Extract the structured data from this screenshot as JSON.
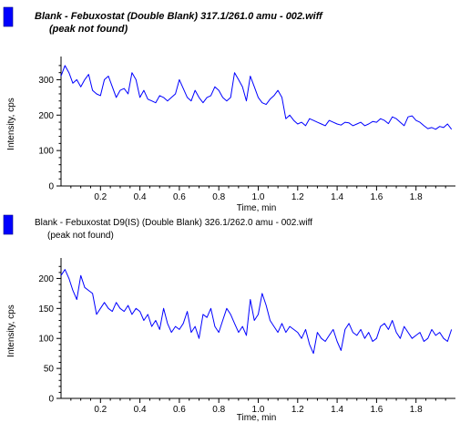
{
  "chart_data": [
    {
      "type": "line",
      "title": "Blank - Febuxostat (Double Blank) 317.1/261.0 amu - 002.wiff",
      "subtitle": "(peak not found)",
      "title_style": "bold-italic",
      "legend_color": "#0000ff",
      "line_color": "#0000ff",
      "xlabel": "Time, min",
      "ylabel": "Intensity, cps",
      "xlim": [
        0.0,
        2.0
      ],
      "ylim": [
        0,
        350
      ],
      "x_ticks": [
        0.2,
        0.4,
        0.6,
        0.8,
        1.0,
        1.2,
        1.4,
        1.6,
        1.8
      ],
      "y_ticks": [
        0,
        100,
        200,
        300
      ],
      "x_tick_labels": [
        "0.2",
        "0.4",
        "0.6",
        "0.8",
        "1.0",
        "1.2",
        "1.4",
        "1.6",
        "1.8"
      ],
      "y_tick_labels": [
        "0",
        "100",
        "200",
        "300"
      ],
      "grid": false,
      "series": [
        {
          "x": [
            0.0,
            0.02,
            0.04,
            0.06,
            0.08,
            0.1,
            0.12,
            0.14,
            0.16,
            0.18,
            0.2,
            0.22,
            0.24,
            0.26,
            0.28,
            0.3,
            0.32,
            0.34,
            0.36,
            0.38,
            0.4,
            0.42,
            0.44,
            0.46,
            0.48,
            0.5,
            0.52,
            0.54,
            0.56,
            0.58,
            0.6,
            0.62,
            0.64,
            0.66,
            0.68,
            0.7,
            0.72,
            0.74,
            0.76,
            0.78,
            0.8,
            0.82,
            0.84,
            0.86,
            0.88,
            0.9,
            0.92,
            0.94,
            0.96,
            0.98,
            1.0,
            1.02,
            1.04,
            1.06,
            1.08,
            1.1,
            1.12,
            1.14,
            1.16,
            1.18,
            1.2,
            1.22,
            1.24,
            1.26,
            1.28,
            1.3,
            1.32,
            1.34,
            1.36,
            1.38,
            1.4,
            1.42,
            1.44,
            1.46,
            1.48,
            1.5,
            1.52,
            1.54,
            1.56,
            1.58,
            1.6,
            1.62,
            1.64,
            1.66,
            1.68,
            1.7,
            1.72,
            1.74,
            1.76,
            1.78,
            1.8,
            1.82,
            1.84,
            1.86,
            1.88,
            1.9,
            1.92,
            1.94,
            1.96,
            1.98
          ],
          "y": [
            310,
            340,
            320,
            290,
            300,
            280,
            300,
            315,
            270,
            260,
            255,
            300,
            310,
            280,
            250,
            270,
            275,
            260,
            320,
            300,
            250,
            270,
            245,
            240,
            235,
            255,
            250,
            240,
            250,
            260,
            300,
            275,
            250,
            240,
            270,
            250,
            235,
            250,
            255,
            280,
            270,
            250,
            240,
            250,
            320,
            300,
            280,
            240,
            310,
            280,
            250,
            235,
            230,
            245,
            255,
            270,
            250,
            190,
            200,
            185,
            175,
            180,
            170,
            190,
            185,
            180,
            175,
            170,
            185,
            180,
            175,
            172,
            180,
            178,
            170,
            175,
            180,
            170,
            175,
            182,
            180,
            190,
            185,
            176,
            195,
            190,
            180,
            170,
            195,
            198,
            185,
            180,
            170,
            162,
            165,
            160,
            168,
            165,
            175,
            160
          ]
        }
      ]
    },
    {
      "type": "line",
      "title": "Blank - Febuxostat D9(IS) (Double Blank) 326.1/262.0 amu - 002.wiff",
      "subtitle": "(peak not found)",
      "title_style": "normal",
      "legend_color": "#0000ff",
      "line_color": "#0000ff",
      "xlabel": "Time, min",
      "ylabel": "Intensity, cps",
      "xlim": [
        0.0,
        2.0
      ],
      "ylim": [
        0,
        225
      ],
      "x_ticks": [
        0.2,
        0.4,
        0.6,
        0.8,
        1.0,
        1.2,
        1.4,
        1.6,
        1.8
      ],
      "y_ticks": [
        0,
        50,
        100,
        150,
        200
      ],
      "x_tick_labels": [
        "0.2",
        "0.4",
        "0.6",
        "0.8",
        "1.0",
        "1.2",
        "1.4",
        "1.6",
        "1.8"
      ],
      "y_tick_labels": [
        "0",
        "50",
        "100",
        "150",
        "200"
      ],
      "grid": false,
      "series": [
        {
          "x": [
            0.0,
            0.02,
            0.04,
            0.06,
            0.08,
            0.1,
            0.12,
            0.14,
            0.16,
            0.18,
            0.2,
            0.22,
            0.24,
            0.26,
            0.28,
            0.3,
            0.32,
            0.34,
            0.36,
            0.38,
            0.4,
            0.42,
            0.44,
            0.46,
            0.48,
            0.5,
            0.52,
            0.54,
            0.56,
            0.58,
            0.6,
            0.62,
            0.64,
            0.66,
            0.68,
            0.7,
            0.72,
            0.74,
            0.76,
            0.78,
            0.8,
            0.82,
            0.84,
            0.86,
            0.88,
            0.9,
            0.92,
            0.94,
            0.96,
            0.98,
            1.0,
            1.02,
            1.04,
            1.06,
            1.08,
            1.1,
            1.12,
            1.14,
            1.16,
            1.18,
            1.2,
            1.22,
            1.24,
            1.26,
            1.28,
            1.3,
            1.32,
            1.34,
            1.36,
            1.38,
            1.4,
            1.42,
            1.44,
            1.46,
            1.48,
            1.5,
            1.52,
            1.54,
            1.56,
            1.58,
            1.6,
            1.62,
            1.64,
            1.66,
            1.68,
            1.7,
            1.72,
            1.74,
            1.76,
            1.78,
            1.8,
            1.82,
            1.84,
            1.86,
            1.88,
            1.9,
            1.92,
            1.94,
            1.96,
            1.98
          ],
          "y": [
            205,
            215,
            200,
            180,
            165,
            205,
            185,
            180,
            175,
            140,
            150,
            160,
            150,
            145,
            160,
            150,
            145,
            155,
            140,
            150,
            145,
            130,
            140,
            120,
            130,
            115,
            150,
            125,
            110,
            120,
            115,
            125,
            145,
            110,
            120,
            100,
            140,
            135,
            150,
            120,
            110,
            130,
            150,
            140,
            125,
            110,
            120,
            105,
            165,
            130,
            140,
            175,
            155,
            130,
            120,
            110,
            125,
            110,
            120,
            115,
            110,
            100,
            115,
            90,
            75,
            110,
            100,
            95,
            105,
            115,
            95,
            80,
            115,
            125,
            110,
            105,
            115,
            100,
            110,
            95,
            100,
            120,
            125,
            115,
            130,
            110,
            100,
            120,
            110,
            100,
            105,
            110,
            95,
            100,
            115,
            105,
            110,
            100,
            95,
            115
          ]
        }
      ]
    }
  ]
}
